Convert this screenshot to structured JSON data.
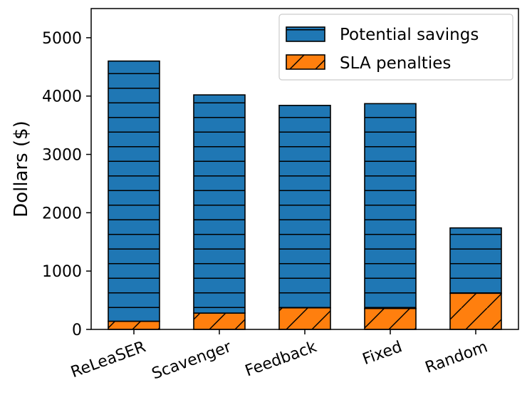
{
  "chart_data": {
    "type": "bar",
    "stacked": true,
    "title": "",
    "xlabel": "",
    "ylabel": "Dollars ($)",
    "ylim": [
      0,
      5500
    ],
    "yticks": [
      0,
      1000,
      2000,
      3000,
      4000,
      5000
    ],
    "categories": [
      "ReLeaSER",
      "Scavenger",
      "Feedback",
      "Fixed",
      "Random"
    ],
    "series": [
      {
        "name": "SLA penalties",
        "values": [
          140,
          280,
          370,
          360,
          620
        ],
        "color": "#ff7f0e",
        "hatch": "diagonal"
      },
      {
        "name": "Potential savings",
        "values": [
          4460,
          3740,
          3470,
          3510,
          1120
        ],
        "color": "#1f77b4",
        "hatch": "horizontal"
      }
    ],
    "legend": {
      "position": "top-right",
      "entries": [
        "Potential savings",
        "SLA penalties"
      ]
    },
    "grid": false
  }
}
